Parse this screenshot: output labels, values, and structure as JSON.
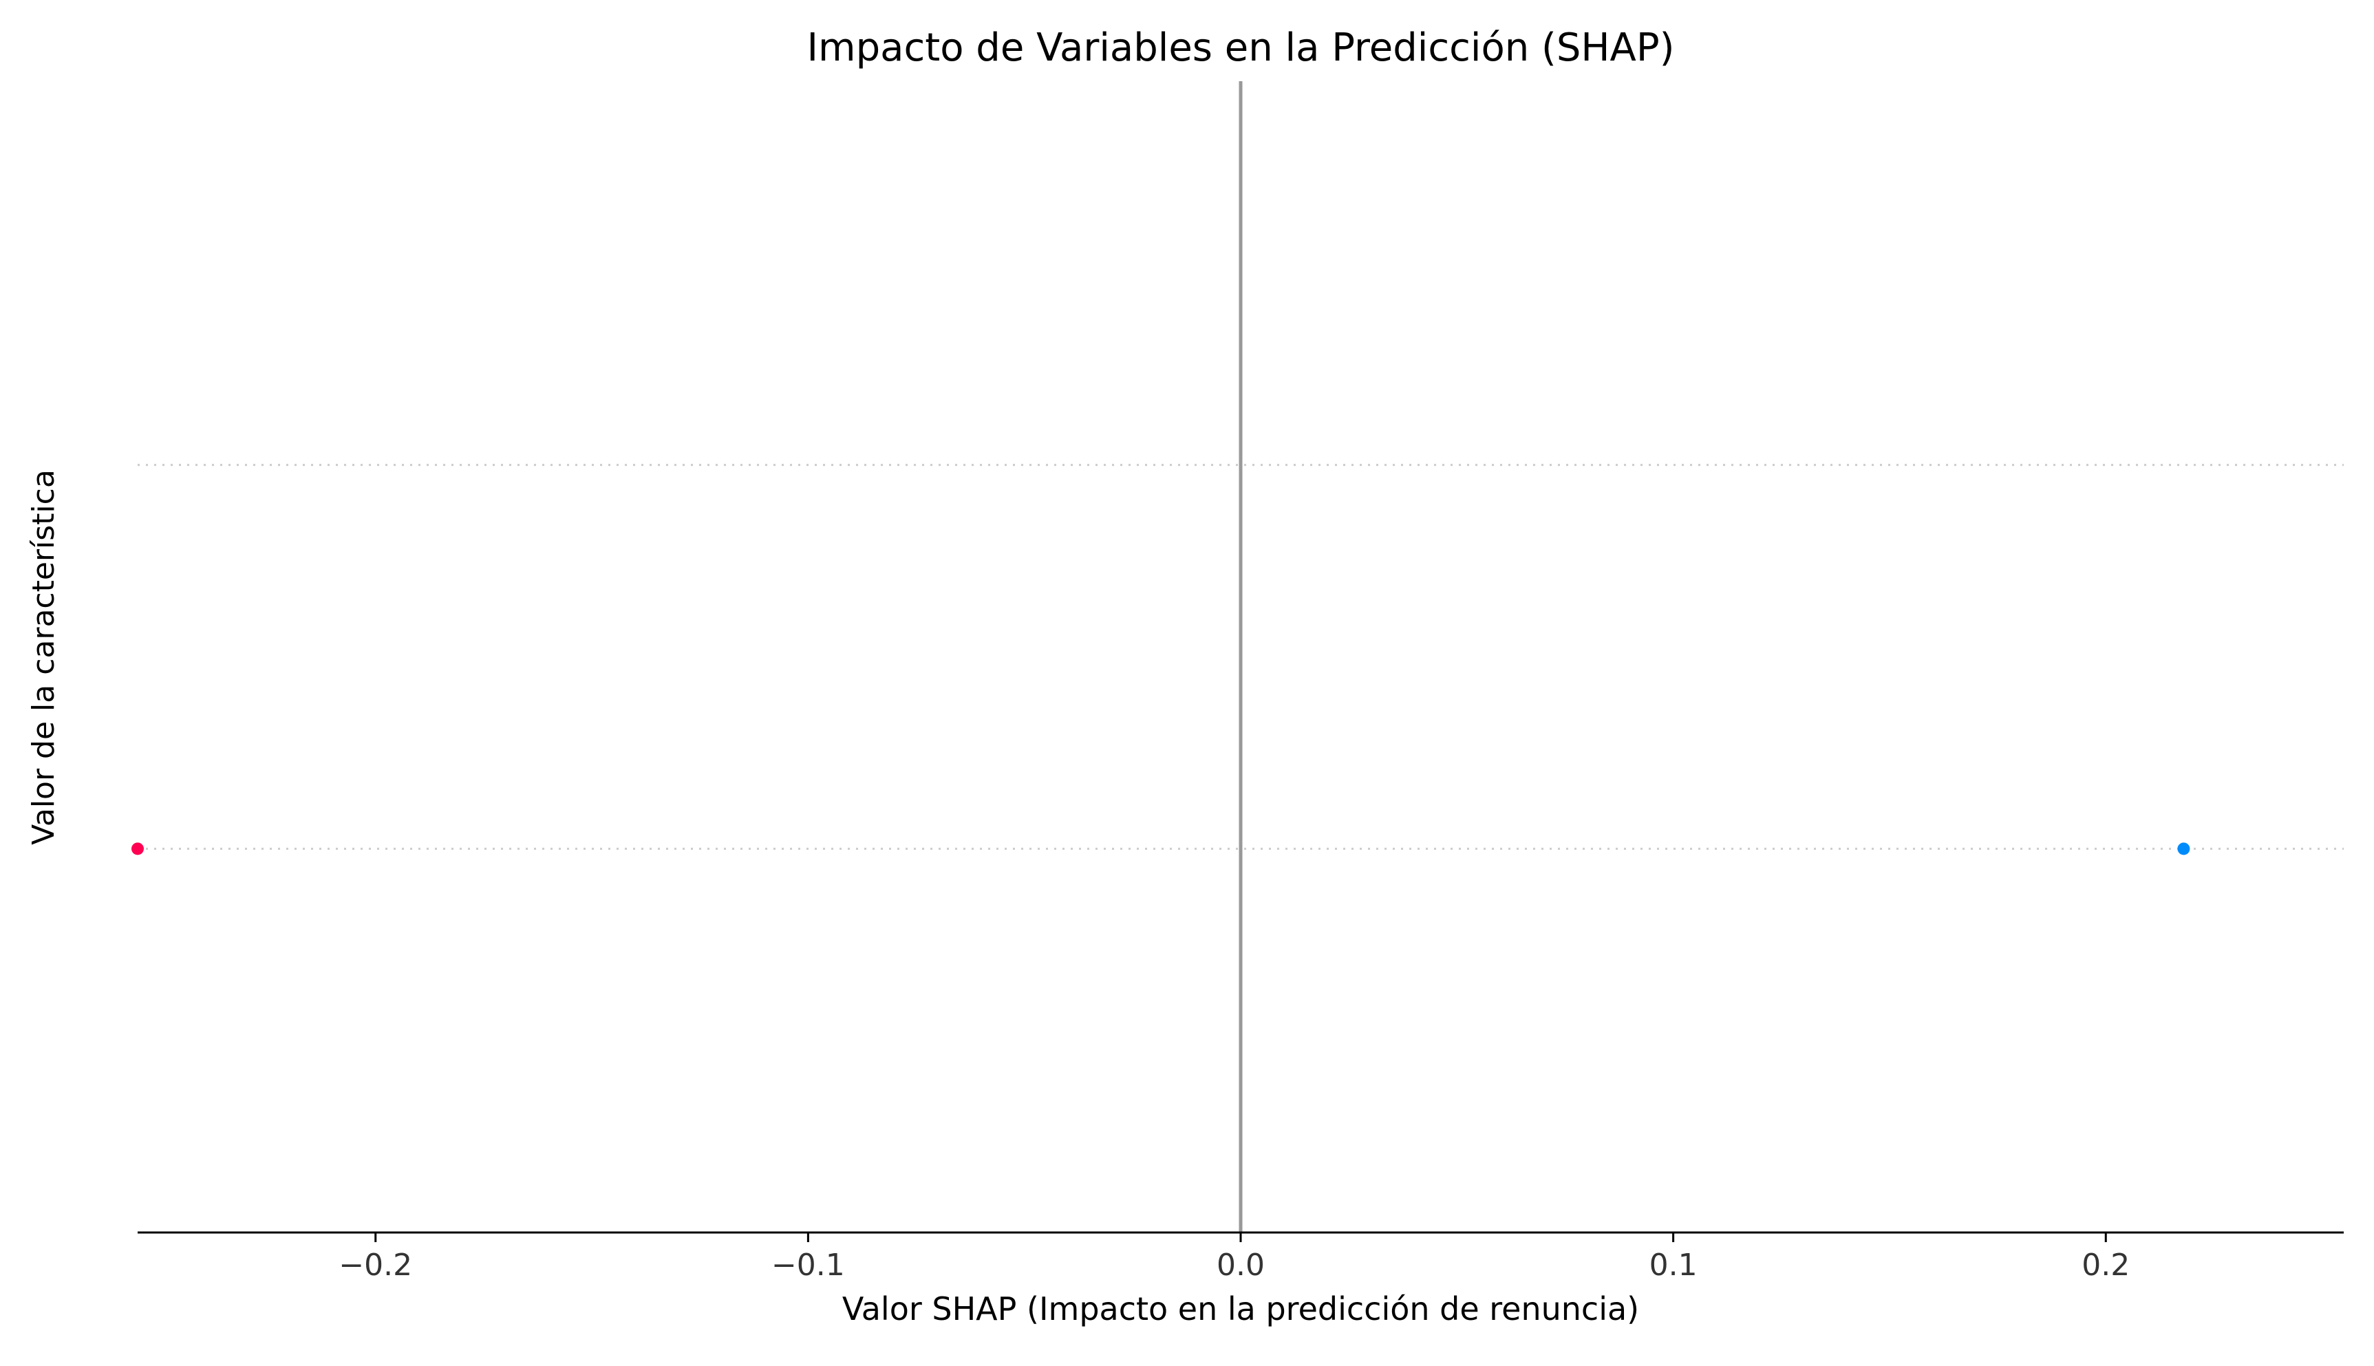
{
  "chart_data": {
    "type": "scatter",
    "title": "Impacto de Variables en la Predicción (SHAP)",
    "xlabel": "Valor SHAP (Impacto en la predicción de renuncia)",
    "ylabel": "Valor de la característica",
    "xlim": [
      -0.255,
      0.255
    ],
    "x_ticks": [
      -0.2,
      -0.1,
      0.0,
      0.1,
      0.2
    ],
    "x_tick_labels": [
      "−0.2",
      "−0.1",
      "0.0",
      "0.1",
      "0.2"
    ],
    "reference_line_x": 0.0,
    "rows": 2,
    "grid": "horizontal dotted row guides",
    "points": [
      {
        "x": -0.255,
        "row": 0,
        "color": "#ff0052"
      },
      {
        "x": 0.218,
        "row": 0,
        "color": "#008bfb"
      }
    ]
  },
  "colors": {
    "zero_line": "#999999",
    "axis": "#000000",
    "text": "#333333",
    "row_guide": "#cccccc"
  }
}
